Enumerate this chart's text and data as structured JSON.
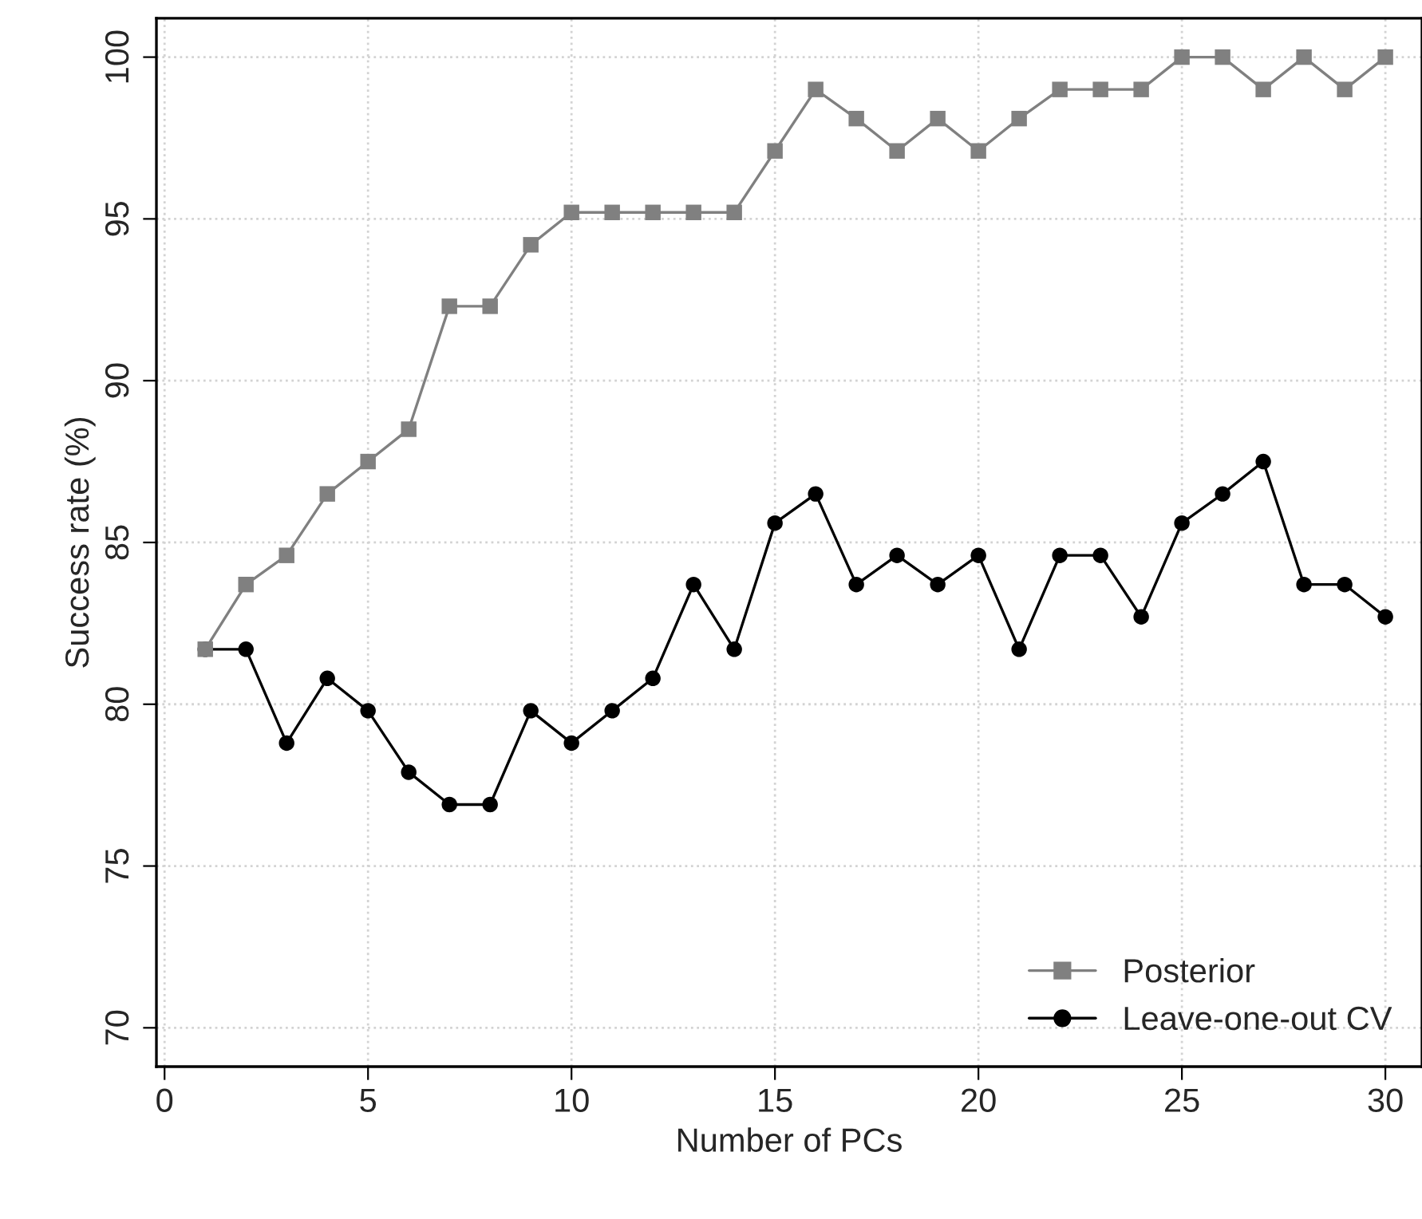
{
  "chart_data": {
    "type": "line",
    "xlabel": "Number of PCs",
    "ylabel": "Success rate (%)",
    "x": [
      1,
      2,
      3,
      4,
      5,
      6,
      7,
      8,
      9,
      10,
      11,
      12,
      13,
      14,
      15,
      16,
      17,
      18,
      19,
      20,
      21,
      22,
      23,
      24,
      25,
      26,
      27,
      28,
      29,
      30
    ],
    "series": [
      {
        "name": "Posterior",
        "color": "#808080",
        "marker": "square",
        "values": [
          81.7,
          83.7,
          84.6,
          86.5,
          87.5,
          88.5,
          92.3,
          92.3,
          94.2,
          95.2,
          95.2,
          95.2,
          95.2,
          95.2,
          97.1,
          99.0,
          98.1,
          97.1,
          98.1,
          97.1,
          98.1,
          99.0,
          99.0,
          99.0,
          100,
          100,
          99.0,
          100,
          99.0,
          100
        ]
      },
      {
        "name": "Leave-one-out CV",
        "color": "#000000",
        "marker": "circle",
        "values": [
          81.7,
          81.7,
          78.8,
          80.8,
          79.8,
          77.9,
          76.9,
          76.9,
          79.8,
          78.8,
          79.8,
          80.8,
          83.7,
          81.7,
          85.6,
          86.5,
          83.7,
          84.6,
          83.7,
          84.6,
          81.7,
          84.6,
          84.6,
          82.7,
          85.6,
          86.5,
          87.5,
          83.7,
          83.7,
          82.7
        ]
      }
    ],
    "xlim": [
      -0.2,
      30.9
    ],
    "ylim": [
      68.8,
      101.2
    ],
    "xticks": [
      0,
      5,
      10,
      15,
      20,
      25,
      30
    ],
    "yticks": [
      70,
      75,
      80,
      85,
      90,
      95,
      100
    ],
    "grid": true,
    "legend": "bottom right",
    "line_style": "solid"
  }
}
